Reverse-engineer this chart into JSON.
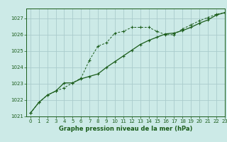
{
  "title": "Graphe pression niveau de la mer (hPa)",
  "bg_color": "#cceae7",
  "grid_color": "#aacccc",
  "line_color": "#1a5c1a",
  "xlim": [
    -0.5,
    23
  ],
  "ylim": [
    1021,
    1027.6
  ],
  "yticks": [
    1021,
    1022,
    1023,
    1024,
    1025,
    1026,
    1027
  ],
  "xticks": [
    0,
    1,
    2,
    3,
    4,
    5,
    6,
    7,
    8,
    9,
    10,
    11,
    12,
    13,
    14,
    15,
    16,
    17,
    18,
    19,
    20,
    21,
    22,
    23
  ],
  "series1_x": [
    0,
    1,
    2,
    3,
    4,
    5,
    6,
    7,
    8,
    9,
    10,
    11,
    12,
    13,
    14,
    15,
    16,
    17,
    18,
    19,
    20,
    21,
    22,
    23
  ],
  "series1_y": [
    1021.2,
    1021.85,
    1022.3,
    1022.55,
    1022.75,
    1023.05,
    1023.35,
    1024.45,
    1025.3,
    1025.5,
    1026.1,
    1026.2,
    1026.45,
    1026.45,
    1026.45,
    1026.2,
    1026.0,
    1026.0,
    1026.35,
    1026.6,
    1026.85,
    1027.05,
    1027.25,
    1027.35
  ],
  "series2_x": [
    0,
    1,
    2,
    3,
    4,
    5,
    6,
    7,
    8,
    9,
    10,
    11,
    12,
    13,
    14,
    15,
    16,
    17,
    18,
    19,
    20,
    21,
    22,
    23
  ],
  "series2_y": [
    1021.2,
    1021.85,
    1022.3,
    1022.55,
    1023.05,
    1023.05,
    1023.3,
    1023.45,
    1023.6,
    1024.0,
    1024.35,
    1024.7,
    1025.05,
    1025.4,
    1025.65,
    1025.85,
    1026.05,
    1026.1,
    1026.25,
    1026.45,
    1026.7,
    1026.9,
    1027.2,
    1027.35
  ],
  "title_fontsize": 6.0,
  "tick_fontsize": 5.0
}
